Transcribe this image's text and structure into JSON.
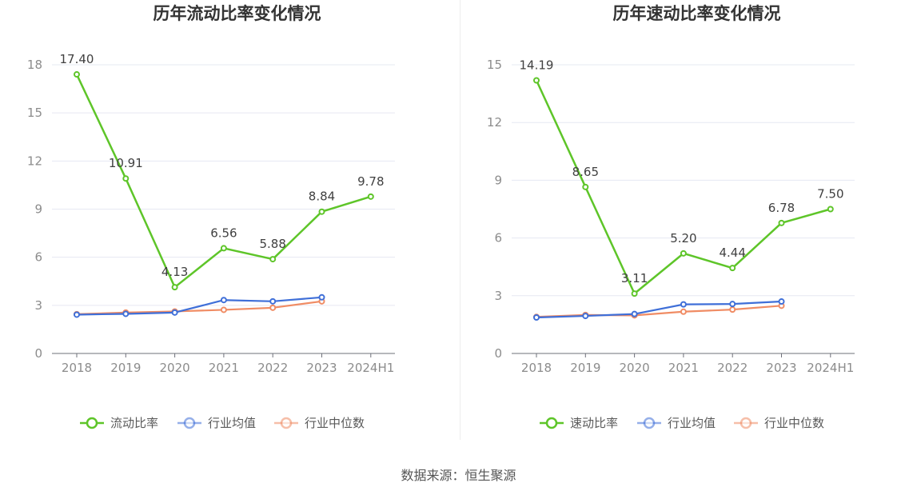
{
  "source": "数据来源：恒生聚源",
  "chart_data": [
    {
      "type": "line",
      "title": "历年流动比率变化情况",
      "categories": [
        "2018",
        "2019",
        "2020",
        "2021",
        "2022",
        "2023",
        "2024H1"
      ],
      "ylim": [
        0,
        18
      ],
      "yticks": [
        0,
        3,
        6,
        9,
        12,
        15,
        18
      ],
      "grid": true,
      "legend_position": "bottom",
      "series": [
        {
          "name": "流动比率",
          "color": "#5ec529",
          "values": [
            17.4,
            10.91,
            4.13,
            6.56,
            5.88,
            8.84,
            9.78
          ],
          "labels": [
            "17.40",
            "10.91",
            "4.13",
            "6.56",
            "5.88",
            "8.84",
            "9.78"
          ]
        },
        {
          "name": "行业均值",
          "color": "#3f6fd8",
          "values": [
            2.42,
            2.47,
            2.55,
            3.33,
            3.25,
            3.5,
            null
          ]
        },
        {
          "name": "行业中位数",
          "color": "#f08c64",
          "values": [
            2.45,
            2.55,
            2.62,
            2.72,
            2.85,
            3.25,
            null
          ]
        }
      ]
    },
    {
      "type": "line",
      "title": "历年速动比率变化情况",
      "categories": [
        "2018",
        "2019",
        "2020",
        "2021",
        "2022",
        "2023",
        "2024H1"
      ],
      "ylim": [
        0,
        15
      ],
      "yticks": [
        0,
        3,
        6,
        9,
        12,
        15
      ],
      "grid": true,
      "legend_position": "bottom",
      "series": [
        {
          "name": "速动比率",
          "color": "#5ec529",
          "values": [
            14.19,
            8.65,
            3.11,
            5.2,
            4.44,
            6.78,
            7.5
          ],
          "labels": [
            "14.19",
            "8.65",
            "3.11",
            "5.20",
            "4.44",
            "6.78",
            "7.50"
          ]
        },
        {
          "name": "行业均值",
          "color": "#3f6fd8",
          "values": [
            1.87,
            1.95,
            2.05,
            2.55,
            2.57,
            2.7,
            null
          ]
        },
        {
          "name": "行业中位数",
          "color": "#f08c64",
          "values": [
            1.9,
            2.0,
            1.98,
            2.17,
            2.28,
            2.48,
            null
          ]
        }
      ]
    }
  ]
}
